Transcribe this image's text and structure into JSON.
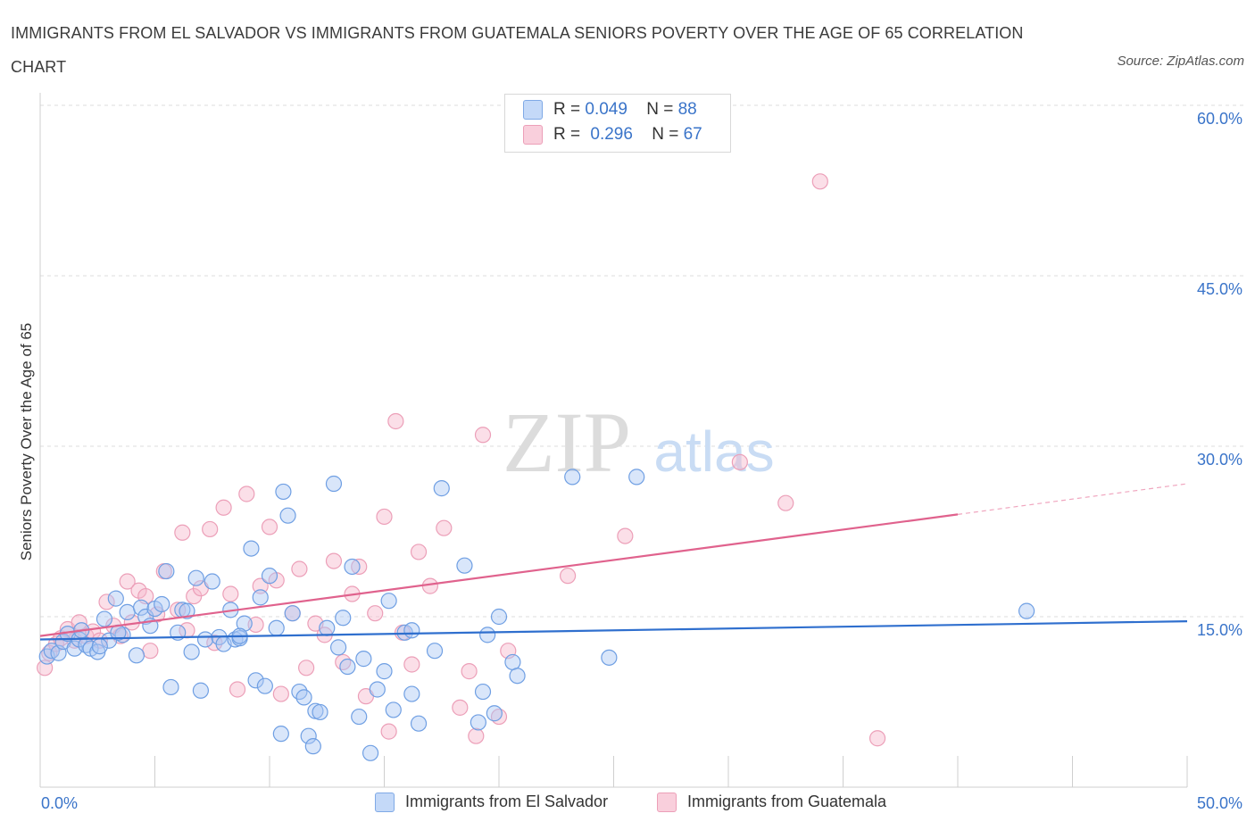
{
  "title": "IMMIGRANTS FROM EL SALVADOR VS IMMIGRANTS FROM GUATEMALA SENIORS POVERTY OVER THE AGE OF 65 CORRELATION CHART",
  "source": "Source: ZipAtlas.com",
  "watermark": {
    "zip": "ZIP",
    "atlas": "atlas"
  },
  "colors": {
    "blue_fill": "#aac8f5",
    "blue_line": "#2f6fce",
    "pink_fill": "#f6b8cc",
    "pink_line": "#e0628d",
    "tick_text": "#3a74c9"
  },
  "legend": {
    "rows": [
      {
        "r_label": "R =",
        "r_value": "0.049",
        "n_label": "N =",
        "n_value": "88"
      },
      {
        "r_label": "R =",
        "r_value": "0.296",
        "n_label": "N =",
        "n_value": "67"
      }
    ]
  },
  "bottom_legend": [
    "Immigrants from El Salvador",
    "Immigrants from Guatemala"
  ],
  "chart_data": {
    "type": "scatter",
    "title": "IMMIGRANTS FROM EL SALVADOR VS IMMIGRANTS FROM GUATEMALA SENIORS POVERTY OVER THE AGE OF 65 CORRELATION CHART",
    "xlabel": "",
    "ylabel": "Seniors Poverty Over the Age of 65",
    "xlim": [
      0,
      50
    ],
    "ylim": [
      0,
      60
    ],
    "x_tick_labels": [
      "0.0%",
      "50.0%"
    ],
    "y_ticks": [
      15,
      30,
      45,
      60
    ],
    "y_tick_labels": [
      "15.0%",
      "30.0%",
      "45.0%",
      "60.0%"
    ],
    "grid": true,
    "legend_position": "top-center",
    "series": [
      {
        "name": "Immigrants from El Salvador",
        "color": "#aac8f5",
        "trend": {
          "x": [
            0,
            50
          ],
          "y": [
            13.0,
            14.6
          ]
        },
        "points": [
          [
            0.3,
            11.5
          ],
          [
            0.5,
            12.0
          ],
          [
            0.8,
            11.8
          ],
          [
            1.0,
            12.8
          ],
          [
            1.2,
            13.5
          ],
          [
            1.5,
            12.2
          ],
          [
            1.7,
            13.0
          ],
          [
            2.0,
            12.5
          ],
          [
            2.2,
            12.2
          ],
          [
            2.5,
            11.9
          ],
          [
            2.8,
            14.8
          ],
          [
            3.0,
            12.9
          ],
          [
            3.3,
            16.6
          ],
          [
            3.6,
            13.4
          ],
          [
            3.8,
            15.4
          ],
          [
            4.2,
            11.6
          ],
          [
            4.4,
            15.8
          ],
          [
            4.6,
            15.0
          ],
          [
            4.8,
            14.2
          ],
          [
            5.0,
            15.7
          ],
          [
            5.3,
            16.1
          ],
          [
            5.5,
            19.0
          ],
          [
            5.7,
            8.8
          ],
          [
            6.0,
            13.6
          ],
          [
            6.2,
            15.6
          ],
          [
            6.4,
            15.5
          ],
          [
            6.6,
            11.9
          ],
          [
            6.8,
            18.4
          ],
          [
            7.0,
            8.5
          ],
          [
            7.2,
            13.0
          ],
          [
            7.5,
            18.1
          ],
          [
            7.8,
            13.2
          ],
          [
            8.0,
            12.6
          ],
          [
            8.3,
            15.6
          ],
          [
            8.5,
            13.0
          ],
          [
            8.7,
            13.1
          ],
          [
            8.9,
            14.4
          ],
          [
            9.2,
            21.0
          ],
          [
            9.4,
            9.4
          ],
          [
            9.6,
            16.7
          ],
          [
            9.8,
            8.9
          ],
          [
            10.0,
            18.6
          ],
          [
            10.3,
            14.0
          ],
          [
            10.5,
            4.7
          ],
          [
            10.6,
            26.0
          ],
          [
            10.8,
            23.9
          ],
          [
            11.0,
            15.3
          ],
          [
            11.3,
            8.4
          ],
          [
            11.5,
            7.9
          ],
          [
            11.7,
            4.5
          ],
          [
            11.9,
            3.6
          ],
          [
            12.0,
            6.7
          ],
          [
            12.2,
            6.6
          ],
          [
            12.5,
            14.0
          ],
          [
            12.8,
            26.7
          ],
          [
            13.0,
            12.3
          ],
          [
            13.2,
            14.9
          ],
          [
            13.4,
            10.6
          ],
          [
            13.6,
            19.4
          ],
          [
            13.9,
            6.2
          ],
          [
            14.1,
            11.3
          ],
          [
            14.4,
            3.0
          ],
          [
            14.7,
            8.6
          ],
          [
            15.0,
            10.2
          ],
          [
            15.2,
            16.4
          ],
          [
            15.4,
            6.8
          ],
          [
            15.9,
            13.6
          ],
          [
            16.2,
            13.8
          ],
          [
            16.2,
            8.2
          ],
          [
            16.5,
            5.6
          ],
          [
            17.2,
            12.0
          ],
          [
            17.5,
            26.3
          ],
          [
            18.5,
            19.5
          ],
          [
            19.1,
            5.7
          ],
          [
            19.3,
            8.4
          ],
          [
            19.5,
            13.4
          ],
          [
            19.8,
            6.5
          ],
          [
            20.0,
            15.0
          ],
          [
            20.6,
            11.0
          ],
          [
            20.8,
            9.8
          ],
          [
            23.2,
            27.3
          ],
          [
            24.8,
            11.4
          ],
          [
            26.0,
            27.3
          ],
          [
            43.0,
            15.5
          ],
          [
            1.8,
            13.8
          ],
          [
            3.4,
            13.6
          ],
          [
            2.6,
            12.4
          ],
          [
            8.7,
            13.3
          ]
        ]
      },
      {
        "name": "Immigrants from Guatemala",
        "color": "#f6b8cc",
        "trend": {
          "x": [
            0,
            40
          ],
          "y": [
            13.3,
            24.0
          ]
        },
        "trend_dashed": {
          "x": [
            40,
            50
          ],
          "y": [
            24.0,
            26.7
          ]
        },
        "points": [
          [
            0.2,
            10.5
          ],
          [
            0.4,
            11.8
          ],
          [
            0.7,
            12.6
          ],
          [
            0.9,
            13.1
          ],
          [
            1.2,
            13.9
          ],
          [
            1.5,
            12.9
          ],
          [
            1.7,
            14.5
          ],
          [
            2.0,
            13.3
          ],
          [
            2.3,
            13.7
          ],
          [
            2.6,
            12.9
          ],
          [
            2.9,
            16.3
          ],
          [
            3.2,
            14.2
          ],
          [
            3.5,
            13.3
          ],
          [
            3.8,
            18.1
          ],
          [
            4.0,
            14.5
          ],
          [
            4.3,
            17.3
          ],
          [
            4.6,
            16.8
          ],
          [
            4.8,
            12.0
          ],
          [
            5.1,
            15.2
          ],
          [
            5.4,
            19.0
          ],
          [
            6.0,
            15.6
          ],
          [
            6.2,
            22.4
          ],
          [
            6.4,
            13.8
          ],
          [
            6.7,
            16.8
          ],
          [
            7.0,
            17.5
          ],
          [
            7.4,
            22.7
          ],
          [
            7.6,
            12.7
          ],
          [
            8.0,
            24.6
          ],
          [
            8.3,
            17.0
          ],
          [
            8.6,
            8.6
          ],
          [
            9.0,
            25.8
          ],
          [
            9.4,
            14.3
          ],
          [
            9.6,
            17.7
          ],
          [
            10.0,
            22.9
          ],
          [
            10.3,
            18.2
          ],
          [
            10.5,
            8.2
          ],
          [
            11.0,
            15.3
          ],
          [
            11.3,
            19.2
          ],
          [
            11.6,
            10.5
          ],
          [
            12.0,
            14.4
          ],
          [
            12.4,
            13.4
          ],
          [
            12.8,
            19.9
          ],
          [
            13.2,
            11.0
          ],
          [
            13.6,
            17.0
          ],
          [
            13.9,
            19.4
          ],
          [
            14.2,
            8.0
          ],
          [
            14.6,
            15.3
          ],
          [
            15.0,
            23.8
          ],
          [
            15.2,
            4.9
          ],
          [
            15.5,
            32.2
          ],
          [
            15.8,
            13.6
          ],
          [
            16.2,
            10.8
          ],
          [
            16.5,
            20.7
          ],
          [
            17.0,
            17.7
          ],
          [
            17.6,
            22.8
          ],
          [
            18.3,
            7.0
          ],
          [
            18.7,
            10.2
          ],
          [
            19.0,
            4.5
          ],
          [
            19.3,
            31.0
          ],
          [
            20.0,
            6.2
          ],
          [
            20.4,
            12.0
          ],
          [
            23.0,
            18.6
          ],
          [
            25.5,
            22.1
          ],
          [
            30.5,
            28.6
          ],
          [
            32.5,
            25.0
          ],
          [
            34.0,
            53.3
          ],
          [
            36.5,
            4.3
          ]
        ]
      }
    ]
  }
}
